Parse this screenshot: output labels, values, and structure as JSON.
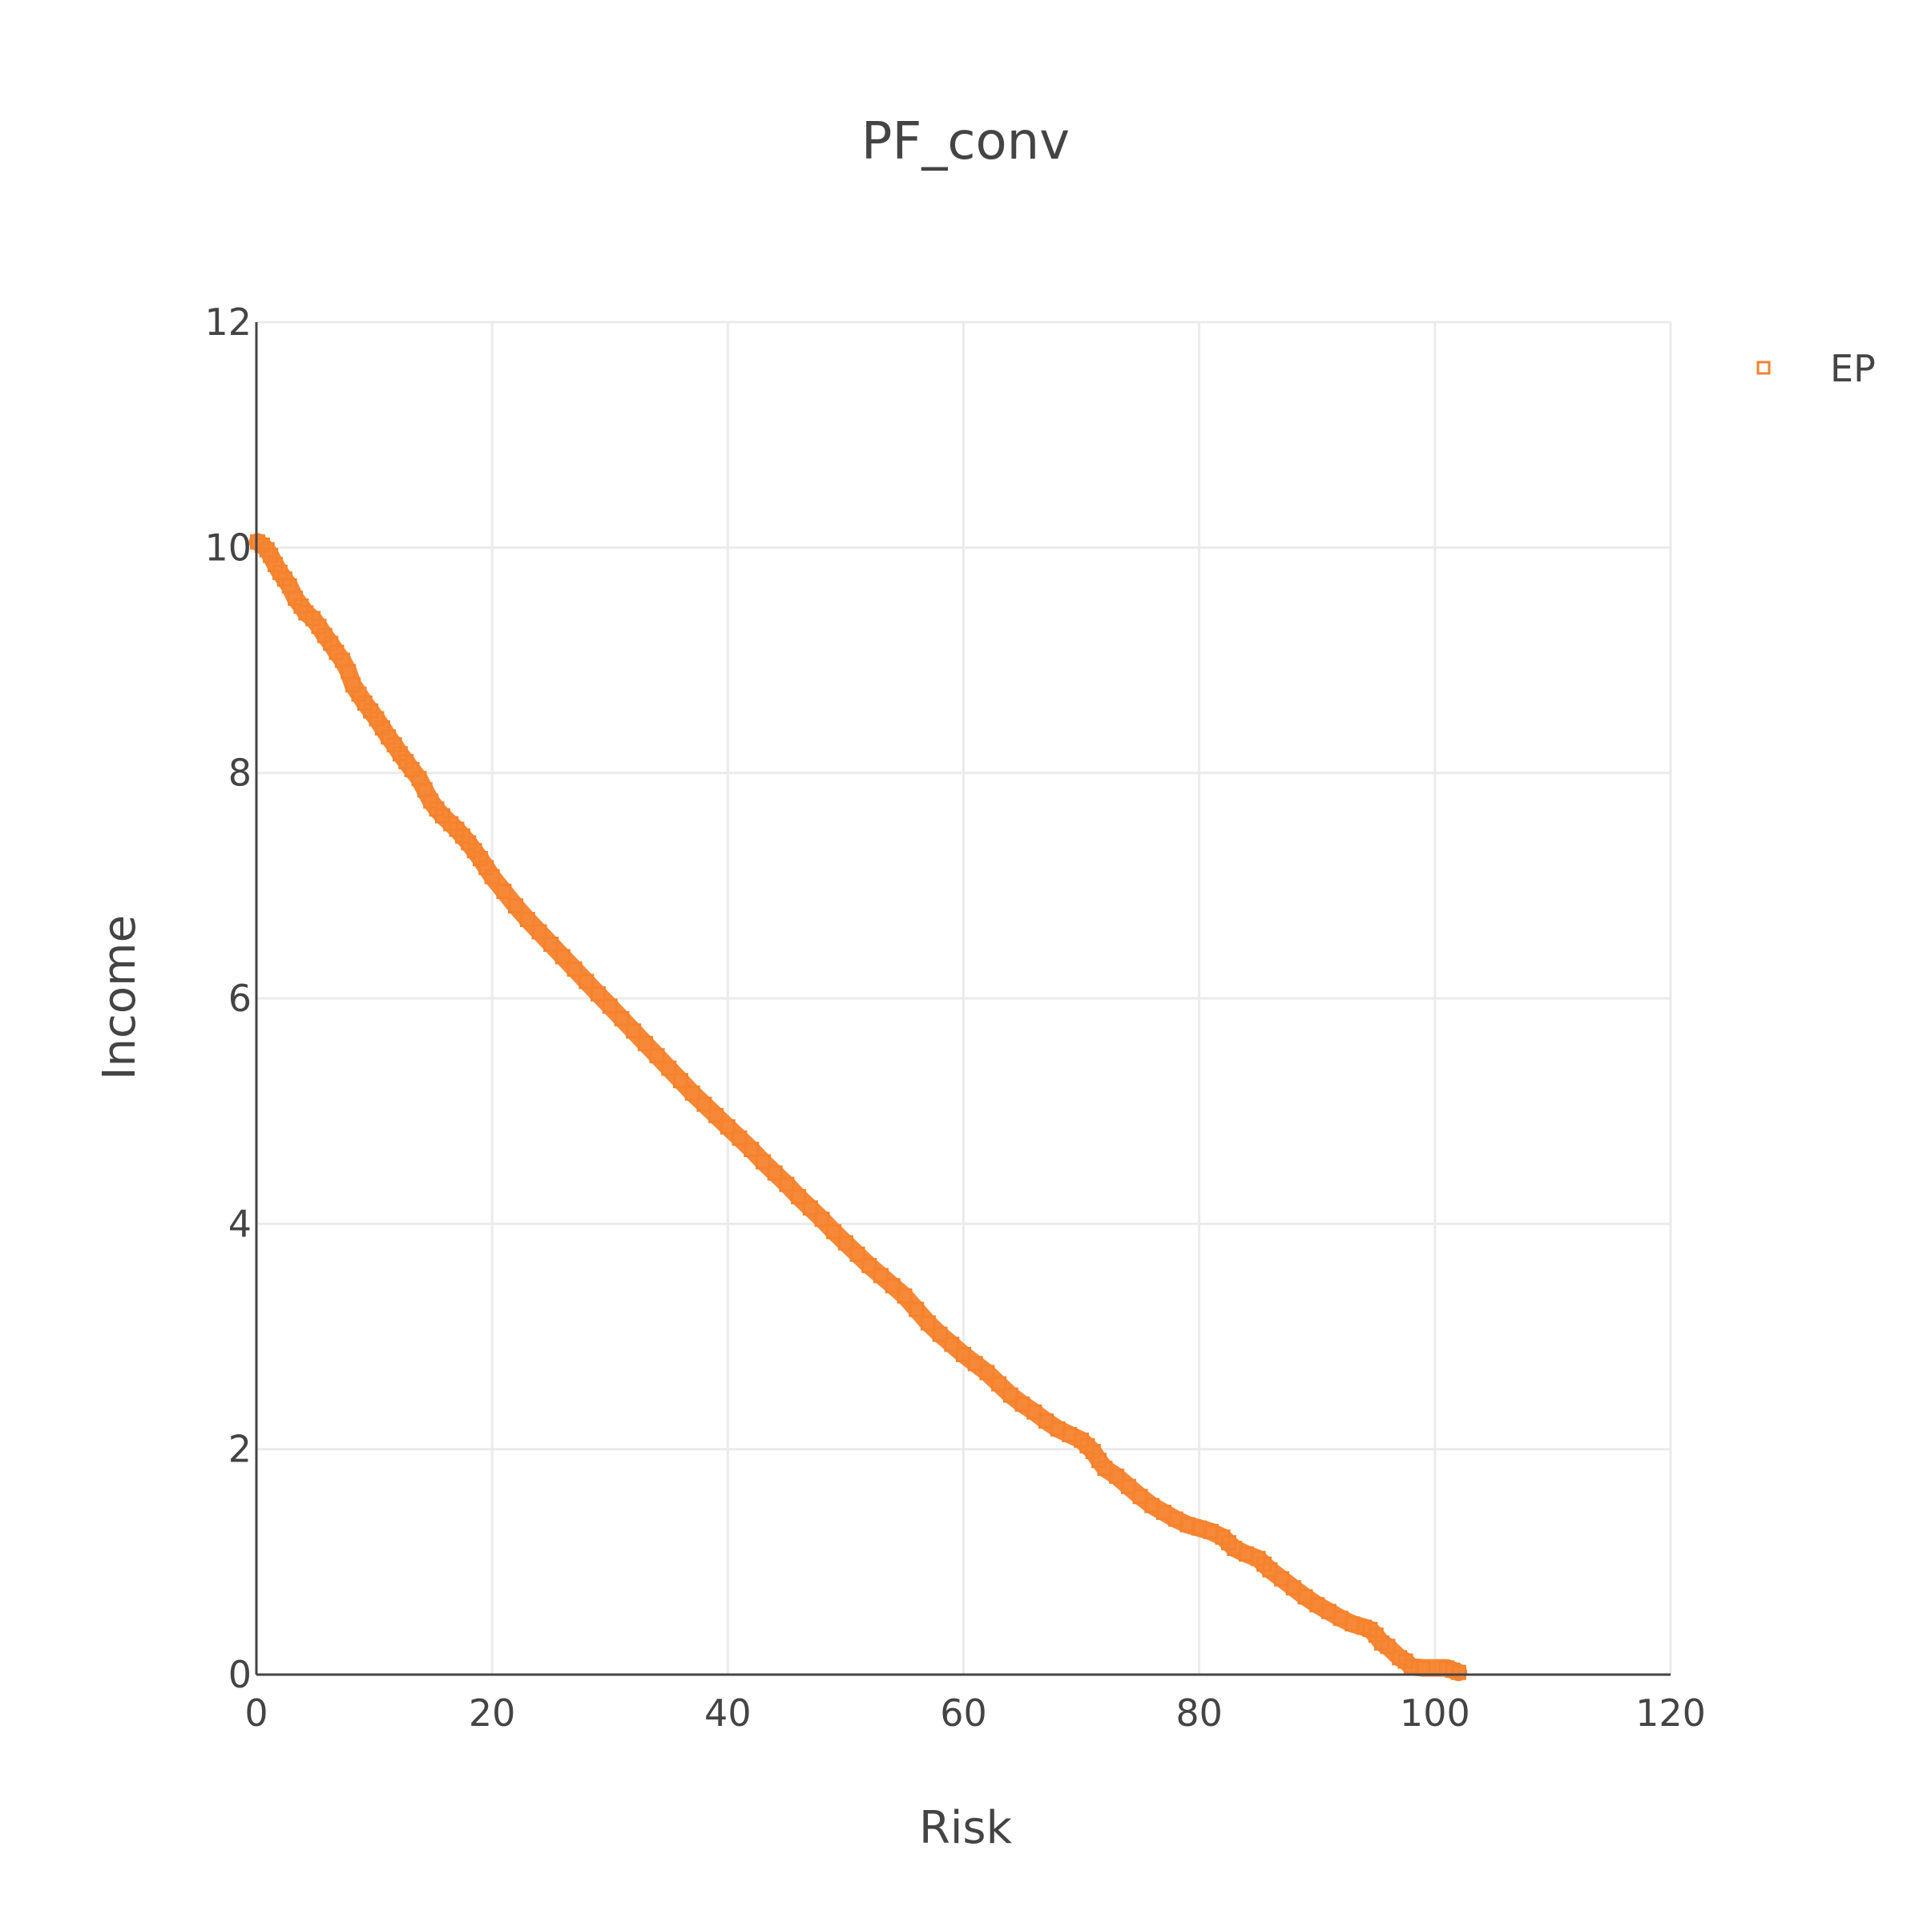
{
  "chart_data": {
    "type": "scatter",
    "title": "PF_conv",
    "xlabel": "Risk",
    "ylabel": "Income",
    "xlim": [
      0,
      120
    ],
    "ylim": [
      0,
      12
    ],
    "xticks": [
      "0",
      "20",
      "40",
      "60",
      "80",
      "100",
      "120"
    ],
    "yticks": [
      "0",
      "2",
      "4",
      "6",
      "8",
      "10",
      "12"
    ],
    "grid": true,
    "legend_position": "top-right",
    "colors": {
      "series": "#f5822d",
      "grid": "#ebebeb",
      "axis": "#444444",
      "text": "#444444"
    },
    "series": [
      {
        "name": "EP",
        "marker": "square-open",
        "x": [
          0.1,
          0.5,
          0.9,
          1.2,
          1.6,
          2.0,
          2.4,
          2.8,
          3.3,
          3.8,
          4.2,
          4.8,
          5.3,
          5.8,
          6.3,
          6.8,
          7.3,
          7.8,
          8.2,
          8.7,
          9.2,
          9.7,
          10.2,
          10.7,
          11.2,
          11.7,
          12.2,
          12.7,
          13.2,
          13.8,
          14.3,
          14.8,
          15.3,
          15.8,
          16.5,
          17.0,
          17.5,
          18.0,
          18.5,
          19.0,
          19.5,
          20.0,
          21.0,
          22.0,
          23.0,
          24.0,
          25.0,
          26.0,
          27.0,
          28.0,
          29.0,
          30.0,
          31.0,
          32.0,
          33.0,
          34.0,
          35.0,
          36.0,
          37.0,
          38.0,
          39.0,
          40.0,
          41.0,
          42.0,
          43.0,
          44.0,
          45.0,
          46.0,
          47.0,
          48.0,
          49.0,
          50.0,
          51.0,
          52.0,
          53.0,
          54.0,
          55.0,
          56.0,
          57.0,
          58.0,
          59.0,
          60.0,
          61.0,
          62.0,
          63.0,
          64.0,
          65.0,
          66.0,
          67.0,
          68.0,
          69.0,
          70.0,
          70.5,
          71.0,
          71.5,
          72.0,
          73.0,
          74.0,
          75.0,
          76.0,
          77.0,
          78.0,
          79.0,
          80.0,
          81.0,
          82.0,
          82.5,
          83.0,
          84.0,
          85.0,
          85.5,
          86.0,
          87.0,
          88.0,
          89.0,
          90.0,
          91.0,
          92.0,
          93.0,
          94.0,
          94.5,
          95.0,
          95.5,
          96.0,
          97.0,
          97.5,
          98.0,
          99.0,
          101.0,
          101.5,
          102.0
        ],
        "y": [
          10.05,
          10.02,
          9.98,
          9.93,
          9.85,
          9.78,
          9.72,
          9.66,
          9.55,
          9.48,
          9.42,
          9.37,
          9.3,
          9.22,
          9.15,
          9.07,
          9.0,
          8.9,
          8.78,
          8.7,
          8.62,
          8.55,
          8.48,
          8.4,
          8.32,
          8.25,
          8.17,
          8.1,
          8.03,
          7.95,
          7.85,
          7.75,
          7.68,
          7.62,
          7.55,
          7.5,
          7.44,
          7.38,
          7.31,
          7.24,
          7.16,
          7.08,
          6.95,
          6.82,
          6.7,
          6.59,
          6.48,
          6.37,
          6.26,
          6.15,
          6.04,
          5.93,
          5.82,
          5.71,
          5.6,
          5.49,
          5.38,
          5.27,
          5.16,
          5.06,
          4.96,
          4.86,
          4.76,
          4.66,
          4.55,
          4.45,
          4.35,
          4.24,
          4.14,
          4.04,
          3.93,
          3.83,
          3.73,
          3.63,
          3.54,
          3.45,
          3.36,
          3.24,
          3.12,
          3.02,
          2.93,
          2.84,
          2.76,
          2.68,
          2.58,
          2.48,
          2.4,
          2.33,
          2.25,
          2.18,
          2.13,
          2.08,
          2.03,
          1.98,
          1.9,
          1.83,
          1.76,
          1.67,
          1.58,
          1.5,
          1.44,
          1.38,
          1.33,
          1.3,
          1.27,
          1.22,
          1.17,
          1.12,
          1.07,
          1.03,
          0.98,
          0.93,
          0.85,
          0.77,
          0.69,
          0.62,
          0.56,
          0.5,
          0.45,
          0.42,
          0.4,
          0.35,
          0.28,
          0.25,
          0.15,
          0.12,
          0.07,
          0.06,
          0.06,
          0.04,
          0.02
        ]
      }
    ]
  }
}
